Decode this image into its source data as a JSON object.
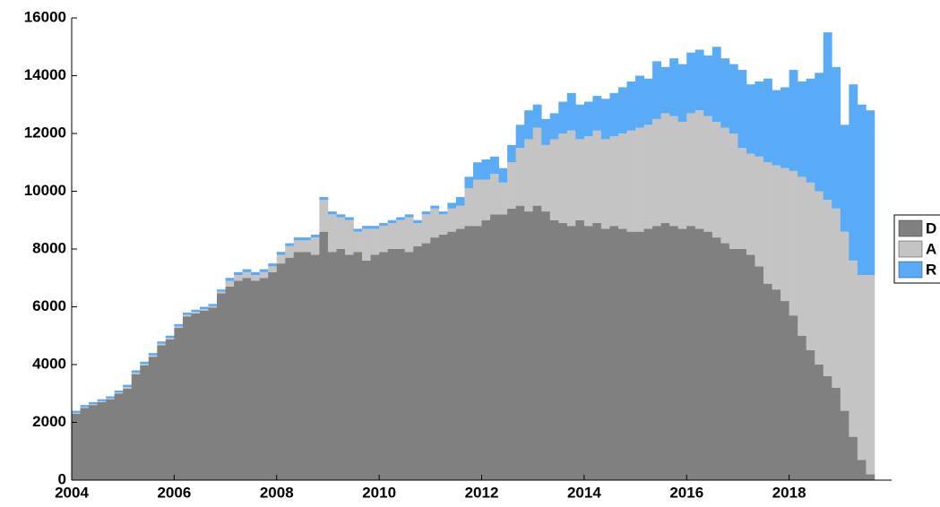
{
  "chart_data": {
    "type": "stacked_bar",
    "x": [
      2004,
      2004.167,
      2004.333,
      2004.5,
      2004.667,
      2004.833,
      2005,
      2005.167,
      2005.333,
      2005.5,
      2005.667,
      2005.833,
      2006,
      2006.167,
      2006.333,
      2006.5,
      2006.667,
      2006.833,
      2007,
      2007.167,
      2007.333,
      2007.5,
      2007.667,
      2007.833,
      2008,
      2008.167,
      2008.333,
      2008.5,
      2008.667,
      2008.833,
      2009,
      2009.167,
      2009.333,
      2009.5,
      2009.667,
      2009.833,
      2010,
      2010.167,
      2010.333,
      2010.5,
      2010.667,
      2010.833,
      2011,
      2011.167,
      2011.333,
      2011.5,
      2011.667,
      2011.833,
      2012,
      2012.167,
      2012.333,
      2012.5,
      2012.667,
      2012.833,
      2013,
      2013.167,
      2013.333,
      2013.5,
      2013.667,
      2013.833,
      2014,
      2014.167,
      2014.333,
      2014.5,
      2014.667,
      2014.833,
      2015,
      2015.167,
      2015.333,
      2015.5,
      2015.667,
      2015.833,
      2016,
      2016.167,
      2016.333,
      2016.5,
      2016.667,
      2016.833,
      2017,
      2017.167,
      2017.333,
      2017.5,
      2017.667,
      2017.833,
      2018,
      2018.167,
      2018.333,
      2018.5,
      2018.667,
      2018.833,
      2019,
      2019.167,
      2019.333,
      2019.5
    ],
    "series": [
      {
        "name": "D",
        "color": "#808080",
        "values": [
          2300,
          2500,
          2600,
          2700,
          2800,
          3000,
          3170,
          3670,
          3970,
          4270,
          4670,
          4870,
          5270,
          5670,
          5770,
          5870,
          5970,
          6470,
          6700,
          6900,
          7000,
          6900,
          7000,
          7200,
          7500,
          7700,
          7900,
          7900,
          7800,
          8600,
          7900,
          8000,
          7800,
          7900,
          7600,
          7800,
          7900,
          8000,
          8000,
          7900,
          8100,
          8200,
          8400,
          8500,
          8600,
          8700,
          8800,
          8800,
          9000,
          9200,
          9200,
          9400,
          9500,
          9300,
          9500,
          9300,
          9000,
          8900,
          8800,
          9000,
          8800,
          8900,
          8700,
          8800,
          8700,
          8600,
          8600,
          8700,
          8800,
          8900,
          8800,
          8700,
          8800,
          8700,
          8600,
          8400,
          8200,
          8000,
          8000,
          7800,
          7400,
          6800,
          6600,
          6200,
          5700,
          5000,
          4500,
          4000,
          3600,
          3200,
          2400,
          1500,
          700,
          200
        ]
      },
      {
        "name": "A",
        "color": "#c4c4c4",
        "values": [
          30,
          30,
          30,
          30,
          30,
          30,
          50,
          50,
          50,
          50,
          50,
          50,
          50,
          50,
          50,
          50,
          50,
          50,
          200,
          200,
          200,
          200,
          200,
          200,
          300,
          400,
          400,
          400,
          600,
          1100,
          1300,
          1100,
          1200,
          700,
          1100,
          900,
          900,
          900,
          1000,
          1200,
          800,
          1000,
          1000,
          700,
          800,
          800,
          1300,
          1600,
          1400,
          1400,
          1100,
          1600,
          2000,
          2500,
          2700,
          2300,
          2800,
          3100,
          3300,
          2800,
          3100,
          3200,
          3100,
          3100,
          3300,
          3500,
          3600,
          3600,
          3700,
          3800,
          3800,
          3700,
          3900,
          4100,
          4000,
          4000,
          4000,
          4000,
          3500,
          3500,
          3800,
          4200,
          4300,
          4600,
          5000,
          5500,
          5800,
          6000,
          6100,
          6200,
          6200,
          6100,
          6400,
          6900
        ]
      },
      {
        "name": "R",
        "color": "#5aabf7",
        "values": [
          70,
          70,
          70,
          70,
          70,
          70,
          80,
          80,
          80,
          80,
          80,
          80,
          80,
          80,
          80,
          80,
          80,
          80,
          100,
          100,
          100,
          100,
          100,
          100,
          100,
          100,
          100,
          100,
          100,
          100,
          100,
          100,
          100,
          100,
          100,
          100,
          100,
          100,
          100,
          100,
          100,
          100,
          100,
          100,
          200,
          300,
          400,
          600,
          700,
          600,
          500,
          600,
          800,
          1000,
          800,
          900,
          900,
          1100,
          1300,
          1200,
          1200,
          1200,
          1400,
          1500,
          1600,
          1700,
          1800,
          1600,
          2000,
          1600,
          2000,
          2000,
          2100,
          2100,
          2100,
          2600,
          2400,
          2400,
          2700,
          2400,
          2600,
          2900,
          2600,
          2800,
          3500,
          3300,
          3600,
          4100,
          5800,
          4900,
          3700,
          6100,
          5900,
          5700
        ]
      }
    ],
    "xlim": [
      2004,
      2020
    ],
    "xticks": [
      2004,
      2006,
      2008,
      2010,
      2012,
      2014,
      2016,
      2018
    ],
    "ylim": [
      0,
      16000
    ],
    "yticks": [
      0,
      2000,
      4000,
      6000,
      8000,
      10000,
      12000,
      14000,
      16000
    ],
    "grid": false,
    "legend": "right"
  }
}
